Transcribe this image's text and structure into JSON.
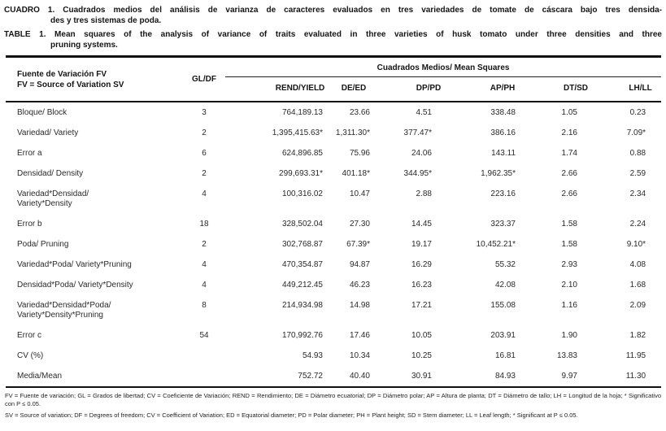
{
  "title": {
    "es": {
      "line1": "CUADRO 1. Cuadrados medios del análisis de varianza de caracteres evaluados en tres variedades de tomate de cáscara bajo tres densida-",
      "line2": "des y tres sistemas de poda."
    },
    "en": {
      "line1": "TABLE 1. Mean squares of the analysis of variance of traits evaluated in three varieties of husk tomato under three densities and three",
      "line2": "pruning systems."
    }
  },
  "table": {
    "source_header_line1": "Fuente de Variación FV",
    "source_header_line2": "FV = Source of Variation SV",
    "gl_header": "GL/DF",
    "span_header": "Cuadrados Medios/ Mean Squares",
    "columns": [
      "REND/YIELD",
      "DE/ED",
      "DP/PD",
      "AP/PH",
      "DT/SD",
      "LH/LL"
    ],
    "rows": [
      {
        "label": [
          "Bloque/ Block"
        ],
        "gl": "3",
        "values": [
          "764,189.13",
          "23.66",
          "4.51",
          "338.48",
          "1.05",
          "0.23"
        ]
      },
      {
        "label": [
          "Variedad/ Variety"
        ],
        "gl": "2",
        "values": [
          "1,395,415.63*",
          "1,311.30*",
          "377.47*",
          "386.16",
          "2.16",
          "7.09*"
        ]
      },
      {
        "label": [
          "Error a"
        ],
        "gl": "6",
        "values": [
          "624,896.85",
          "75.96",
          "24.06",
          "143.11",
          "1.74",
          "0.88"
        ]
      },
      {
        "label": [
          "Densidad/ Density"
        ],
        "gl": "2",
        "values": [
          "299,693.31*",
          "401.18*",
          "344.95*",
          "1,962.35*",
          "2.66",
          "2.59"
        ]
      },
      {
        "label": [
          "Variedad*Densidad/",
          "Variety*Density"
        ],
        "gl": "4",
        "values": [
          "100,316.02",
          "10.47",
          "2.88",
          "223.16",
          "2.66",
          "2.34"
        ]
      },
      {
        "label": [
          "Error b"
        ],
        "gl": "18",
        "values": [
          "328,502.04",
          "27.30",
          "14.45",
          "323.37",
          "1.58",
          "2.24"
        ]
      },
      {
        "label": [
          "Poda/ Pruning"
        ],
        "gl": "2",
        "values": [
          "302,768.87",
          "67.39*",
          "19.17",
          "10,452.21*",
          "1.58",
          "9.10*"
        ]
      },
      {
        "label": [
          "Variedad*Poda/ Variety*Pruning"
        ],
        "gl": "4",
        "values": [
          "470,354.87",
          "94.87",
          "16.29",
          "55.32",
          "2.93",
          "4.08"
        ]
      },
      {
        "label": [
          "Densidad*Poda/ Variety*Density"
        ],
        "gl": "4",
        "values": [
          "449,212.45",
          "46.23",
          "16.23",
          "42.08",
          "2.10",
          "1.68"
        ]
      },
      {
        "label": [
          "Variedad*Densidad*Poda/",
          "Variety*Density*Pruning"
        ],
        "gl": "8",
        "values": [
          "214,934.98",
          "14.98",
          "17.21",
          "155.08",
          "1.16",
          "2.09"
        ]
      },
      {
        "label": [
          "Error c"
        ],
        "gl": "54",
        "values": [
          "170,992.76",
          "17.46",
          "10.05",
          "203.91",
          "1.90",
          "1.82"
        ]
      },
      {
        "label": [
          "CV (%)"
        ],
        "gl": "",
        "values": [
          "54.93",
          "10.34",
          "10.25",
          "16.81",
          "13.83",
          "11.95"
        ]
      },
      {
        "label": [
          "Media/Mean"
        ],
        "gl": "",
        "values": [
          "752.72",
          "40.40",
          "30.91",
          "84.93",
          "9.97",
          "11.30"
        ]
      }
    ]
  },
  "footnotes": {
    "es": "FV = Fuente de variación; GL = Grados de libertad; CV = Coeficiente de Variación; REND = Rendimiento; DE = Diámetro ecuatorial; DP = Diámetro polar; AP = Altura de planta; DT = Diámetro de tallo; LH = Longitud de la hoja; * Significativo con P ≤ 0.05.",
    "en": "SV = Source of variation; DF = Degrees of freedom; CV = Coefficient of Variation; ED = Equatorial diameter; PD = Polar diameter; PH = Plant height; SD = Stem diameter; LL = Leaf length; * Significant at P ≤ 0.05."
  }
}
